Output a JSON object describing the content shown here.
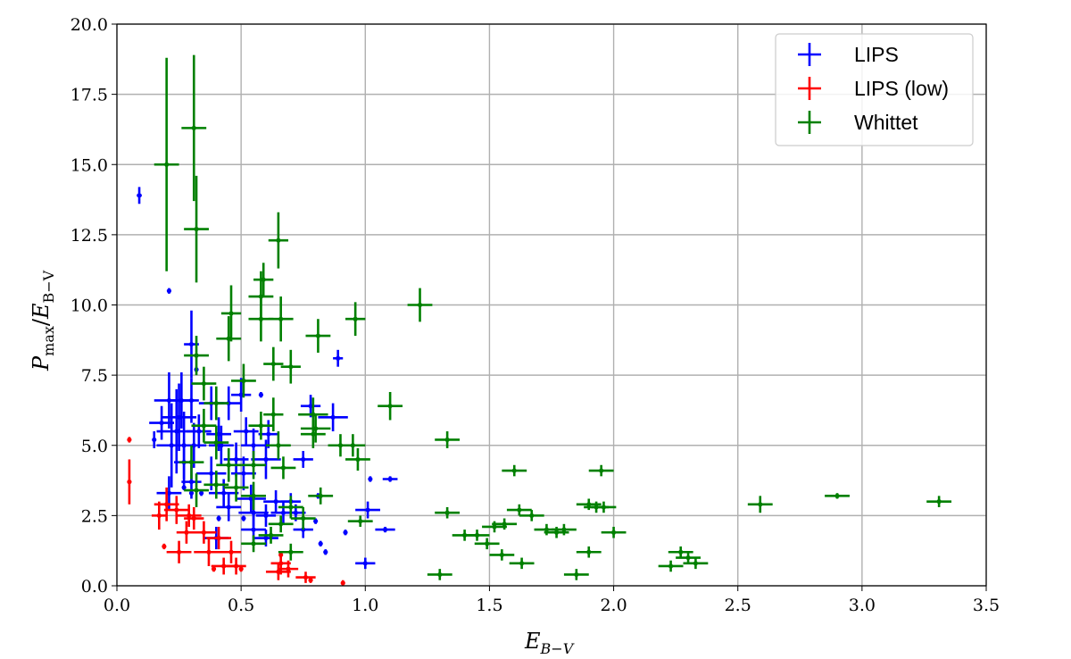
{
  "chart_data": {
    "type": "scatter",
    "title": "",
    "xlabel": "E_{B-V}",
    "ylabel": "P_max/E_B-V",
    "xlabel_parts": {
      "main": "E",
      "sub": "B−V"
    },
    "ylabel_parts": {
      "p": "P",
      "psub": "max",
      "slash": "/",
      "e": "E",
      "esub": "B−V"
    },
    "xlim": [
      0.0,
      3.5
    ],
    "ylim": [
      0.0,
      20.0
    ],
    "xticks": [
      "0.0",
      "0.5",
      "1.0",
      "1.5",
      "2.0",
      "2.5",
      "3.0",
      "3.5"
    ],
    "yticks": [
      "0.0",
      "2.5",
      "5.0",
      "7.5",
      "10.0",
      "12.5",
      "15.0",
      "17.5",
      "20.0"
    ],
    "grid": true,
    "legend_position": "top-right",
    "series": [
      {
        "name": "LIPS",
        "color": "#0000ff",
        "points": [
          [
            0.09,
            13.9,
            0.01,
            0.3
          ],
          [
            0.21,
            10.5,
            0.005,
            0.1
          ],
          [
            0.3,
            8.6,
            0.03,
            1.2
          ],
          [
            0.89,
            8.1,
            0.02,
            0.3
          ],
          [
            0.32,
            7.7,
            0.005,
            0.1
          ],
          [
            0.21,
            6.6,
            0.06,
            1.0
          ],
          [
            0.26,
            6.6,
            0.05,
            1.0
          ],
          [
            0.3,
            6.6,
            0.03,
            0.8
          ],
          [
            0.38,
            6.5,
            0.05,
            0.6
          ],
          [
            0.45,
            6.5,
            0.05,
            0.6
          ],
          [
            0.5,
            6.8,
            0.04,
            0.6
          ],
          [
            0.58,
            6.8,
            0.005,
            0.1
          ],
          [
            0.78,
            6.4,
            0.04,
            0.4
          ],
          [
            0.87,
            6.0,
            0.06,
            0.5
          ],
          [
            0.25,
            6.0,
            0.07,
            1.2
          ],
          [
            0.18,
            5.8,
            0.05,
            0.6
          ],
          [
            0.24,
            5.5,
            0.08,
            1.5
          ],
          [
            0.33,
            5.5,
            0.05,
            0.6
          ],
          [
            0.41,
            5.4,
            0.05,
            0.6
          ],
          [
            0.52,
            5.5,
            0.05,
            0.5
          ],
          [
            0.61,
            5.4,
            0.04,
            0.5
          ],
          [
            0.15,
            5.2,
            0.005,
            0.3
          ],
          [
            0.22,
            5.0,
            0.06,
            1.5
          ],
          [
            0.27,
            5.0,
            0.07,
            1.2
          ],
          [
            0.31,
            5.0,
            0.05,
            0.8
          ],
          [
            0.42,
            5.0,
            0.05,
            0.7
          ],
          [
            0.55,
            5.0,
            0.05,
            0.6
          ],
          [
            0.48,
            4.5,
            0.05,
            0.6
          ],
          [
            0.6,
            4.5,
            0.06,
            0.7
          ],
          [
            0.75,
            4.5,
            0.04,
            0.3
          ],
          [
            0.27,
            4.4,
            0.04,
            0.8
          ],
          [
            0.38,
            4.0,
            0.06,
            0.6
          ],
          [
            0.51,
            4.0,
            0.05,
            0.6
          ],
          [
            0.3,
            3.7,
            0.04,
            0.6
          ],
          [
            1.02,
            3.8,
            0.005,
            0.1
          ],
          [
            1.1,
            3.8,
            0.03,
            0.1
          ],
          [
            0.21,
            3.3,
            0.05,
            0.6
          ],
          [
            0.3,
            3.3,
            0.005,
            0.1
          ],
          [
            0.43,
            3.3,
            0.06,
            0.5
          ],
          [
            0.54,
            3.1,
            0.06,
            0.5
          ],
          [
            0.64,
            3.0,
            0.05,
            0.4
          ],
          [
            0.7,
            3.0,
            0.04,
            0.3
          ],
          [
            0.81,
            3.2,
            0.005,
            0.1
          ],
          [
            0.45,
            2.8,
            0.05,
            0.5
          ],
          [
            0.55,
            2.6,
            0.06,
            0.5
          ],
          [
            0.6,
            2.5,
            0.04,
            0.4
          ],
          [
            0.67,
            2.6,
            0.05,
            0.4
          ],
          [
            0.72,
            2.6,
            0.04,
            0.3
          ],
          [
            1.01,
            2.7,
            0.05,
            0.3
          ],
          [
            0.41,
            2.4,
            0.005,
            0.1
          ],
          [
            0.51,
            2.4,
            0.005,
            0.1
          ],
          [
            0.8,
            2.3,
            0.005,
            0.1
          ],
          [
            0.55,
            2.0,
            0.05,
            0.5
          ],
          [
            0.75,
            2.0,
            0.04,
            0.3
          ],
          [
            0.92,
            1.9,
            0.005,
            0.1
          ],
          [
            1.08,
            2.0,
            0.04,
            0.1
          ],
          [
            0.4,
            1.7,
            0.05,
            0.4
          ],
          [
            0.6,
            1.7,
            0.05,
            0.3
          ],
          [
            0.82,
            1.5,
            0.005,
            0.1
          ],
          [
            0.84,
            1.2,
            0.005,
            0.1
          ],
          [
            1.0,
            0.8,
            0.04,
            0.2
          ],
          [
            0.27,
            3.5,
            0.005,
            0.1
          ],
          [
            0.34,
            3.3,
            0.005,
            0.1
          ]
        ]
      },
      {
        "name": "LIPS (low)",
        "color": "#ff0000",
        "points": [
          [
            0.05,
            5.2,
            0.005,
            0.1
          ],
          [
            0.05,
            3.7,
            0.005,
            0.8
          ],
          [
            0.2,
            2.9,
            0.05,
            0.6
          ],
          [
            0.24,
            2.7,
            0.05,
            0.5
          ],
          [
            0.29,
            2.5,
            0.05,
            0.4
          ],
          [
            0.17,
            2.5,
            0.03,
            0.5
          ],
          [
            0.31,
            2.4,
            0.04,
            0.4
          ],
          [
            0.28,
            1.9,
            0.04,
            0.4
          ],
          [
            0.35,
            1.9,
            0.05,
            0.4
          ],
          [
            0.41,
            1.7,
            0.05,
            0.4
          ],
          [
            0.19,
            1.4,
            0.005,
            0.1
          ],
          [
            0.25,
            1.2,
            0.05,
            0.4
          ],
          [
            0.37,
            1.2,
            0.06,
            0.5
          ],
          [
            0.46,
            1.2,
            0.04,
            0.4
          ],
          [
            0.43,
            0.7,
            0.05,
            0.3
          ],
          [
            0.48,
            0.7,
            0.04,
            0.3
          ],
          [
            0.39,
            0.6,
            0.005,
            0.1
          ],
          [
            0.5,
            0.6,
            0.005,
            0.1
          ],
          [
            0.66,
            0.8,
            0.04,
            0.4
          ],
          [
            0.65,
            0.5,
            0.05,
            0.3
          ],
          [
            0.69,
            0.6,
            0.04,
            0.3
          ],
          [
            0.76,
            0.3,
            0.04,
            0.2
          ],
          [
            0.78,
            0.2,
            0.005,
            0.1
          ],
          [
            0.91,
            0.1,
            0.005,
            0.1
          ],
          [
            0.66,
            1.1,
            0.005,
            0.1
          ]
        ]
      },
      {
        "name": "Whittet",
        "color": "#008000",
        "points": [
          [
            0.2,
            15.0,
            0.05,
            3.8
          ],
          [
            0.31,
            16.3,
            0.05,
            2.6
          ],
          [
            0.32,
            12.7,
            0.05,
            1.9
          ],
          [
            0.65,
            12.3,
            0.04,
            1.0
          ],
          [
            0.59,
            10.9,
            0.04,
            0.6
          ],
          [
            0.58,
            10.3,
            0.05,
            0.9
          ],
          [
            0.58,
            9.5,
            0.05,
            0.8
          ],
          [
            0.66,
            9.5,
            0.05,
            0.8
          ],
          [
            0.46,
            9.7,
            0.04,
            1.0
          ],
          [
            0.45,
            8.8,
            0.05,
            0.8
          ],
          [
            0.32,
            8.2,
            0.05,
            0.7
          ],
          [
            0.81,
            8.9,
            0.05,
            0.6
          ],
          [
            0.96,
            9.5,
            0.04,
            0.6
          ],
          [
            1.22,
            10.0,
            0.05,
            0.6
          ],
          [
            0.63,
            7.9,
            0.04,
            0.6
          ],
          [
            0.7,
            7.8,
            0.04,
            0.6
          ],
          [
            0.35,
            7.2,
            0.05,
            0.6
          ],
          [
            0.51,
            7.3,
            0.05,
            0.6
          ],
          [
            0.4,
            6.5,
            0.05,
            0.6
          ],
          [
            0.63,
            6.1,
            0.04,
            0.6
          ],
          [
            0.79,
            6.1,
            0.06,
            0.6
          ],
          [
            0.8,
            5.6,
            0.06,
            0.5
          ],
          [
            0.79,
            5.4,
            0.05,
            0.5
          ],
          [
            1.1,
            6.4,
            0.05,
            0.5
          ],
          [
            0.35,
            5.7,
            0.05,
            0.6
          ],
          [
            0.4,
            5.1,
            0.05,
            0.6
          ],
          [
            0.58,
            5.7,
            0.05,
            0.5
          ],
          [
            0.65,
            5.0,
            0.05,
            0.5
          ],
          [
            0.9,
            5.0,
            0.05,
            0.4
          ],
          [
            0.95,
            5.0,
            0.05,
            0.4
          ],
          [
            1.33,
            5.2,
            0.05,
            0.3
          ],
          [
            0.3,
            4.4,
            0.05,
            0.6
          ],
          [
            0.45,
            4.3,
            0.05,
            0.6
          ],
          [
            0.55,
            4.3,
            0.05,
            0.5
          ],
          [
            0.67,
            4.2,
            0.05,
            0.4
          ],
          [
            0.97,
            4.5,
            0.05,
            0.4
          ],
          [
            0.32,
            3.4,
            0.05,
            0.6
          ],
          [
            0.4,
            3.6,
            0.05,
            0.5
          ],
          [
            0.48,
            3.5,
            0.05,
            0.5
          ],
          [
            0.55,
            3.2,
            0.05,
            0.5
          ],
          [
            0.82,
            3.2,
            0.05,
            0.3
          ],
          [
            0.7,
            2.8,
            0.05,
            0.4
          ],
          [
            0.75,
            2.4,
            0.05,
            0.4
          ],
          [
            0.66,
            2.2,
            0.05,
            0.3
          ],
          [
            0.62,
            1.8,
            0.05,
            0.3
          ],
          [
            0.55,
            1.5,
            0.05,
            0.3
          ],
          [
            0.7,
            1.2,
            0.05,
            0.3
          ],
          [
            0.98,
            2.3,
            0.05,
            0.2
          ],
          [
            1.33,
            2.6,
            0.05,
            0.2
          ],
          [
            1.4,
            1.8,
            0.05,
            0.2
          ],
          [
            1.45,
            1.8,
            0.05,
            0.2
          ],
          [
            1.52,
            2.1,
            0.05,
            0.2
          ],
          [
            1.56,
            2.2,
            0.05,
            0.2
          ],
          [
            1.49,
            1.5,
            0.05,
            0.2
          ],
          [
            1.55,
            1.1,
            0.05,
            0.2
          ],
          [
            1.3,
            0.4,
            0.05,
            0.2
          ],
          [
            1.6,
            4.1,
            0.05,
            0.2
          ],
          [
            1.62,
            2.7,
            0.05,
            0.2
          ],
          [
            1.67,
            2.5,
            0.05,
            0.2
          ],
          [
            1.73,
            2.0,
            0.05,
            0.2
          ],
          [
            1.77,
            1.9,
            0.05,
            0.2
          ],
          [
            1.8,
            2.0,
            0.05,
            0.2
          ],
          [
            1.63,
            0.8,
            0.05,
            0.2
          ],
          [
            1.85,
            0.4,
            0.05,
            0.2
          ],
          [
            1.9,
            2.9,
            0.05,
            0.2
          ],
          [
            1.93,
            2.8,
            0.05,
            0.2
          ],
          [
            1.95,
            4.1,
            0.05,
            0.2
          ],
          [
            1.96,
            2.8,
            0.05,
            0.2
          ],
          [
            2.0,
            1.9,
            0.05,
            0.2
          ],
          [
            1.9,
            1.2,
            0.05,
            0.2
          ],
          [
            2.23,
            0.7,
            0.05,
            0.2
          ],
          [
            2.27,
            1.2,
            0.05,
            0.2
          ],
          [
            2.3,
            1.0,
            0.05,
            0.2
          ],
          [
            2.33,
            0.8,
            0.05,
            0.2
          ],
          [
            2.59,
            2.9,
            0.05,
            0.3
          ],
          [
            2.9,
            3.2,
            0.05,
            0.1
          ],
          [
            3.31,
            3.0,
            0.05,
            0.2
          ]
        ]
      }
    ]
  }
}
